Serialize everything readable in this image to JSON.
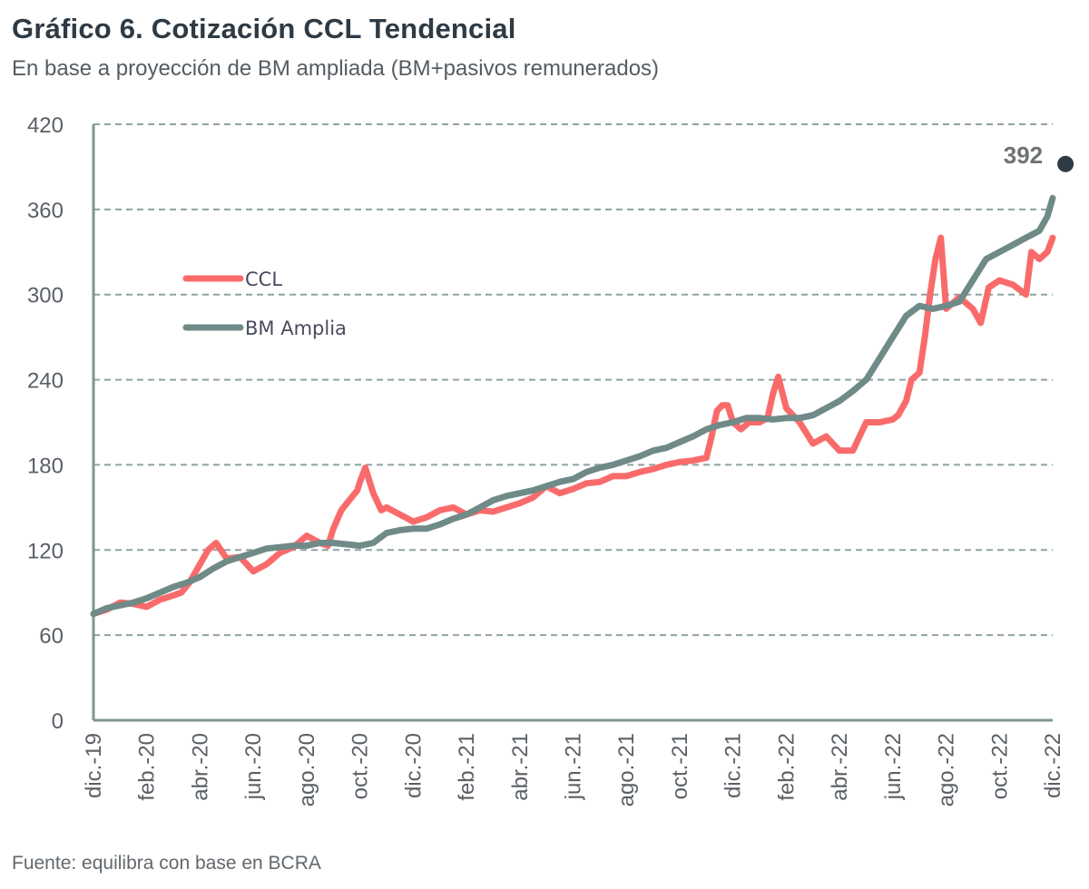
{
  "header": {
    "title": "Gráfico 6. Cotización CCL Tendencial",
    "subtitle": "En base a proyección de BM ampliada (BM+pasivos remunerados)"
  },
  "footer": {
    "source": "Fuente: equilibra con base en BCRA"
  },
  "chart_data": {
    "type": "line",
    "title": "Gráfico 6. Cotización CCL Tendencial",
    "subtitle": "En base a proyección de BM ampliada (BM+pasivos remunerados)",
    "xlabel": "",
    "ylabel": "",
    "ylim": [
      0,
      420
    ],
    "yticks": [
      0,
      60,
      120,
      180,
      240,
      300,
      360,
      420
    ],
    "grid": true,
    "x_tick_labels": [
      "dic.-19",
      "feb.-20",
      "abr.-20",
      "jun.-20",
      "ago.-20",
      "oct.-20",
      "dic.-20",
      "feb.-21",
      "abr.-21",
      "jun.-21",
      "ago.-21",
      "oct.-21",
      "dic.-21",
      "feb.-22",
      "abr.-22",
      "jun.-22",
      "ago.-22",
      "oct.-22",
      "dic.-22"
    ],
    "x_unit": "months since dic.-19",
    "xlim": [
      0,
      36
    ],
    "legend": {
      "position": "upper-left",
      "entries": [
        "CCL",
        "BM Amplia"
      ]
    },
    "colors": {
      "CCL": "#f96b6b",
      "BM Amplia": "#6f8a87",
      "target": "#2d3b46",
      "grid": "#8fa3a1",
      "axis": "#7f9593"
    },
    "series": [
      {
        "name": "CCL",
        "x": [
          0,
          0.5,
          1,
          1.5,
          2,
          2.5,
          3,
          3.3,
          3.6,
          4,
          4.3,
          4.6,
          5,
          5.5,
          6,
          6.5,
          7,
          7.5,
          8,
          8.5,
          8.8,
          9,
          9.3,
          9.6,
          9.9,
          10,
          10.2,
          10.5,
          10.8,
          11,
          11.5,
          12,
          12.5,
          13,
          13.5,
          14,
          14.5,
          15,
          15.5,
          16,
          16.5,
          17,
          17.5,
          18,
          18.5,
          19,
          19.5,
          20,
          20.5,
          21,
          21.5,
          22,
          22.5,
          23,
          23.2,
          23.4,
          23.6,
          23.8,
          24,
          24.3,
          24.6,
          25,
          25.3,
          25.5,
          25.7,
          26,
          26.5,
          27,
          27.5,
          28,
          28.5,
          29,
          29.5,
          30,
          30.2,
          30.5,
          30.7,
          31,
          31.2,
          31.4,
          31.6,
          31.8,
          32,
          32.5,
          33,
          33.3,
          33.6,
          34,
          34.5,
          35,
          35.2,
          35.5,
          35.8,
          36
        ],
        "values": [
          75,
          78,
          83,
          82,
          80,
          85,
          88,
          90,
          97,
          110,
          120,
          125,
          114,
          115,
          105,
          110,
          118,
          122,
          130,
          125,
          123,
          135,
          148,
          155,
          162,
          168,
          178,
          160,
          148,
          150,
          145,
          140,
          143,
          148,
          150,
          145,
          148,
          147,
          150,
          153,
          157,
          165,
          160,
          163,
          167,
          168,
          172,
          172,
          175,
          177,
          180,
          182,
          183,
          185,
          200,
          218,
          222,
          222,
          210,
          205,
          210,
          210,
          213,
          230,
          242,
          220,
          210,
          195,
          200,
          190,
          190,
          210,
          210,
          212,
          215,
          225,
          240,
          245,
          270,
          300,
          325,
          340,
          290,
          298,
          290,
          280,
          305,
          310,
          307,
          300,
          330,
          325,
          330,
          340
        ]
      },
      {
        "name": "BM Amplia",
        "x": [
          0,
          0.5,
          1,
          1.5,
          2,
          2.5,
          3,
          3.5,
          4,
          4.5,
          5,
          5.5,
          6,
          6.5,
          7,
          7.5,
          8,
          8.5,
          9,
          9.5,
          10,
          10.5,
          11,
          11.5,
          12,
          12.5,
          13,
          13.5,
          14,
          14.5,
          15,
          15.5,
          16,
          16.5,
          17,
          17.5,
          18,
          18.5,
          19,
          19.5,
          20,
          20.5,
          21,
          21.5,
          22,
          22.5,
          23,
          23.5,
          24,
          24.5,
          25,
          25.5,
          26,
          26.5,
          27,
          27.5,
          28,
          28.5,
          29,
          29.5,
          30,
          30.5,
          31,
          31.5,
          32,
          32.5,
          33,
          33.5,
          34,
          34.5,
          35,
          35.5,
          35.8,
          36
        ],
        "values": [
          75,
          79,
          81,
          83,
          86,
          90,
          94,
          97,
          101,
          107,
          112,
          115,
          118,
          121,
          122,
          123,
          123,
          125,
          125,
          124,
          123,
          125,
          132,
          134,
          135,
          135,
          138,
          142,
          145,
          150,
          155,
          158,
          160,
          162,
          165,
          168,
          170,
          175,
          178,
          180,
          183,
          186,
          190,
          192,
          196,
          200,
          205,
          208,
          210,
          213,
          213,
          212,
          213,
          213,
          215,
          220,
          225,
          232,
          240,
          255,
          270,
          285,
          292,
          290,
          292,
          295,
          310,
          325,
          330,
          335,
          340,
          345,
          355,
          368
        ]
      }
    ],
    "annotations": [
      {
        "label": "392",
        "x": 35.8,
        "y": 392,
        "marker": "dot"
      }
    ]
  }
}
